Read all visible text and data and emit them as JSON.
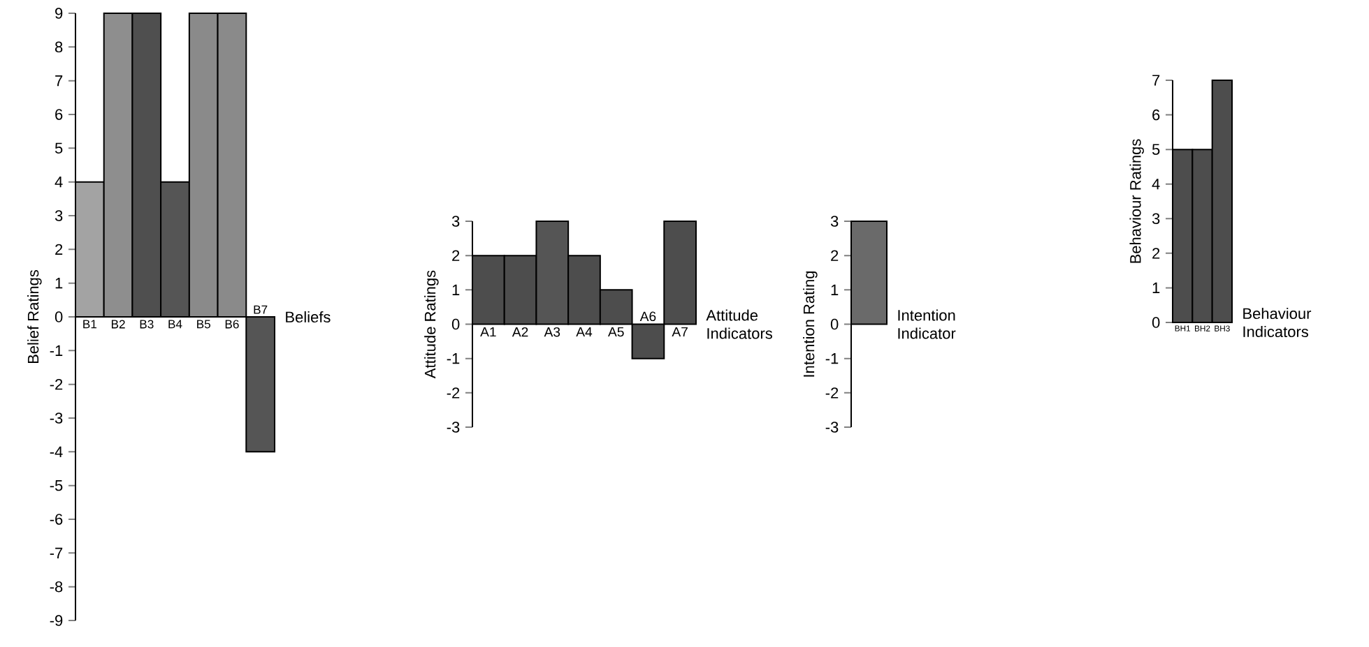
{
  "chart_data": [
    {
      "type": "bar",
      "ylabel": "Belief Ratings",
      "xlabel": "Beliefs",
      "categories": [
        "B1",
        "B2",
        "B3",
        "B4",
        "B5",
        "B6",
        "B7"
      ],
      "values": [
        4,
        9,
        9,
        4,
        9,
        9,
        -4
      ],
      "colors": [
        "#a3a3a3",
        "#8e8e8e",
        "#4f4f4f",
        "#555555",
        "#8a8a8a",
        "#8a8a8a",
        "#555555"
      ],
      "ylim": [
        -9,
        9
      ],
      "yticks": [
        -9,
        -8,
        -7,
        -6,
        -5,
        -4,
        -3,
        -2,
        -1,
        0,
        1,
        2,
        3,
        4,
        5,
        6,
        7,
        8,
        9
      ]
    },
    {
      "type": "bar",
      "ylabel": "Attitude Ratings",
      "xlabel": "Attitude Indicators",
      "categories": [
        "A1",
        "A2",
        "A3",
        "A4",
        "A5",
        "A6",
        "A7"
      ],
      "values": [
        2,
        2,
        3,
        2,
        1,
        -1,
        3
      ],
      "colors": [
        "#4d4d4d",
        "#4d4d4d",
        "#555555",
        "#4d4d4d",
        "#4d4d4d",
        "#4d4d4d",
        "#4d4d4d"
      ],
      "ylim": [
        -3,
        3
      ],
      "yticks": [
        -3,
        -2,
        -1,
        0,
        1,
        2,
        3
      ]
    },
    {
      "type": "bar",
      "ylabel": "Intention Rating",
      "xlabel": "Intention Indicator",
      "categories": [
        null
      ],
      "values": [
        3
      ],
      "colors": [
        "#6a6a6a"
      ],
      "ylim": [
        -3,
        3
      ],
      "yticks": [
        -3,
        -2,
        -1,
        0,
        1,
        2,
        3
      ]
    },
    {
      "type": "bar",
      "ylabel": "Behaviour Ratings",
      "xlabel": "Behaviour Indicators",
      "categories": [
        "BH1",
        "BH2",
        "BH3"
      ],
      "values": [
        5,
        5,
        7
      ],
      "colors": [
        "#4d4d4d",
        "#4d4d4d",
        "#4d4d4d"
      ],
      "ylim": [
        0,
        7
      ],
      "yticks": [
        0,
        1,
        2,
        3,
        4,
        5,
        6,
        7
      ]
    }
  ]
}
